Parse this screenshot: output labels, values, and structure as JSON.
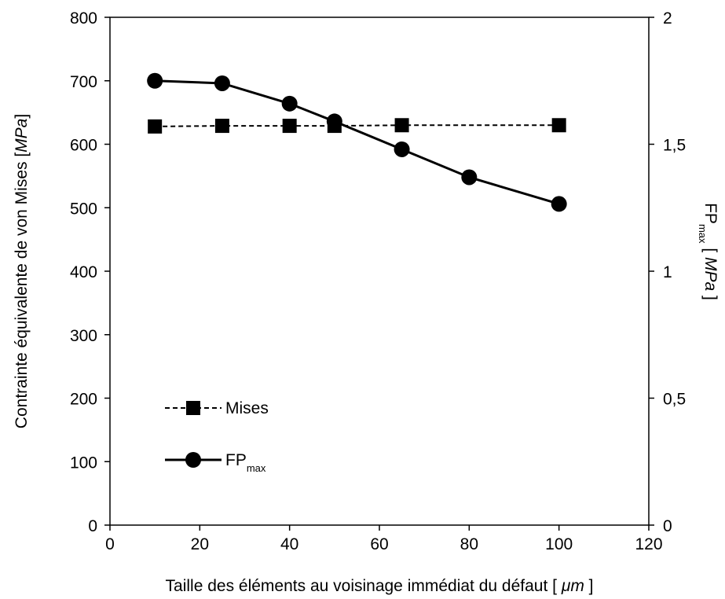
{
  "chart_data": {
    "type": "line",
    "x": {
      "label_prefix": "Taille des éléments au voisinage immédiat du défaut [ ",
      "label_unit": "μm",
      "label_suffix": " ]",
      "range": [
        0,
        120
      ],
      "ticks": [
        "0",
        "20",
        "40",
        "60",
        "80",
        "100",
        "120"
      ]
    },
    "y_left": {
      "label_prefix": "Contrainte équivalente de von Mises [",
      "label_unit": "MPa",
      "label_suffix": "]",
      "range": [
        0,
        800
      ],
      "ticks": [
        "0",
        "100",
        "200",
        "300",
        "400",
        "500",
        "600",
        "700",
        "800"
      ]
    },
    "y_right": {
      "label_main": "FP",
      "label_sub": "max",
      "label_open": " [ ",
      "label_unit": "MPa",
      "label_close": " ]",
      "range": [
        0,
        2
      ],
      "ticks": [
        "0",
        "0,5",
        "1",
        "1,5",
        "2"
      ]
    },
    "series": [
      {
        "name": "Mises",
        "axis": "left",
        "marker": "square",
        "line": "dashed",
        "x": [
          10,
          25,
          40,
          50,
          65,
          100
        ],
        "y": [
          628,
          629,
          629,
          629,
          630,
          630
        ]
      },
      {
        "name": "FP",
        "name_sub": "max",
        "axis": "right",
        "marker": "circle",
        "line": "solid",
        "x": [
          10,
          25,
          40,
          50,
          65,
          80,
          100
        ],
        "y": [
          1.75,
          1.74,
          1.66,
          1.59,
          1.48,
          1.37,
          1.265
        ]
      }
    ],
    "grid": false,
    "legend_position": "bottom-left",
    "colors": {
      "line": "#000000",
      "background": "#ffffff"
    }
  }
}
